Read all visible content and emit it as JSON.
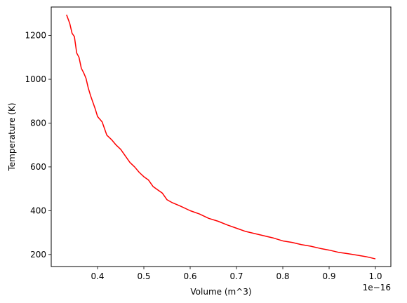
{
  "chart_data": {
    "type": "line",
    "title": "",
    "xlabel": "Volume (m^3)",
    "ylabel": "Temperature (K)",
    "x_offset_label": "1e−16",
    "xlim": [
      0.3,
      1.0333
    ],
    "ylim": [
      145,
      1330
    ],
    "x_ticks": [
      0.4,
      0.5,
      0.6,
      0.7,
      0.8,
      0.9,
      1.0
    ],
    "x_tick_labels": [
      "0.4",
      "0.5",
      "0.6",
      "0.7",
      "0.8",
      "0.9",
      "1.0"
    ],
    "y_ticks": [
      200,
      400,
      600,
      800,
      1000,
      1200
    ],
    "y_tick_labels": [
      "200",
      "400",
      "600",
      "800",
      "1000",
      "1200"
    ],
    "grid": false,
    "legend": "none",
    "series": [
      {
        "color": "#ff0000",
        "x": [
          0.333,
          0.34,
          0.345,
          0.35,
          0.355,
          0.36,
          0.365,
          0.37,
          0.375,
          0.38,
          0.385,
          0.39,
          0.395,
          0.4,
          0.41,
          0.42,
          0.43,
          0.44,
          0.45,
          0.46,
          0.47,
          0.48,
          0.49,
          0.5,
          0.51,
          0.52,
          0.53,
          0.54,
          0.55,
          0.56,
          0.58,
          0.6,
          0.62,
          0.64,
          0.66,
          0.68,
          0.7,
          0.72,
          0.74,
          0.76,
          0.78,
          0.8,
          0.82,
          0.84,
          0.86,
          0.88,
          0.9,
          0.92,
          0.94,
          0.96,
          0.98,
          1.0
        ],
        "y": [
          1295,
          1255,
          1210,
          1195,
          1120,
          1100,
          1050,
          1030,
          1005,
          960,
          925,
          895,
          865,
          830,
          805,
          745,
          725,
          700,
          680,
          650,
          620,
          600,
          575,
          555,
          540,
          510,
          495,
          480,
          450,
          438,
          420,
          400,
          385,
          365,
          352,
          335,
          320,
          305,
          295,
          285,
          275,
          262,
          255,
          245,
          238,
          228,
          220,
          210,
          204,
          197,
          190,
          180
        ]
      }
    ]
  }
}
